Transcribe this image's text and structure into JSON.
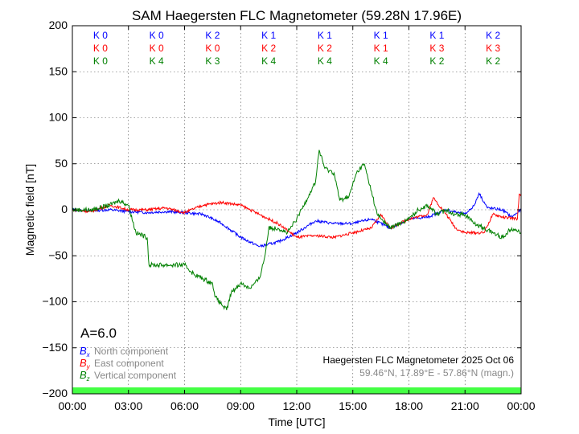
{
  "chart_data": {
    "type": "line",
    "title": "SAM Haegersten FLC Magnetometer (59.28N 17.96E)",
    "xlabel": "Time [UTC]",
    "ylabel": "Magnetic field [nT]",
    "xlim": [
      0,
      24
    ],
    "ylim": [
      -200,
      200
    ],
    "xticks": [
      0,
      3,
      6,
      9,
      12,
      15,
      18,
      21,
      24
    ],
    "xtick_labels": [
      "00:00",
      "03:00",
      "06:00",
      "09:00",
      "12:00",
      "15:00",
      "18:00",
      "21:00",
      "00:00"
    ],
    "yticks": [
      200,
      150,
      100,
      50,
      0,
      -50,
      -100,
      -150,
      -200
    ],
    "ytick_labels": [
      "200",
      "150",
      "100",
      "50",
      "0",
      "−50",
      "−100",
      "−150",
      "−200"
    ],
    "grid": true,
    "k_indices": {
      "bx": [
        "K 0",
        "K 0",
        "K 2",
        "K 1",
        "K 1",
        "K 1",
        "K 1",
        "K 2"
      ],
      "by": [
        "K 0",
        "K 0",
        "K 0",
        "K 2",
        "K 2",
        "K 1",
        "K 3",
        "K 3"
      ],
      "bz": [
        "K 0",
        "K 4",
        "K 3",
        "K 4",
        "K 4",
        "K 4",
        "K 2",
        "K 2"
      ]
    },
    "a_index": "A=6.0",
    "legend": [
      {
        "symbol": "Bx",
        "sub": "x",
        "name": "North component",
        "color": "#0000ff"
      },
      {
        "symbol": "By",
        "sub": "y",
        "name": "East component",
        "color": "#ff0000"
      },
      {
        "symbol": "Bz",
        "sub": "z",
        "name": "Vertical component",
        "color": "#008000"
      }
    ],
    "annotation": "Haegersten FLC Magnetometer 2025 Oct 06",
    "location": "59.46°N, 17.89°E - 57.86°N (magn.)",
    "status_bar_color": "#44ff44",
    "series": [
      {
        "name": "Bx",
        "color": "#0000ff",
        "points": [
          [
            0,
            0
          ],
          [
            1,
            -1
          ],
          [
            2,
            0
          ],
          [
            3,
            -2
          ],
          [
            4,
            -3
          ],
          [
            5,
            -2
          ],
          [
            6,
            -3
          ],
          [
            7,
            -5
          ],
          [
            8,
            -15
          ],
          [
            9,
            -30
          ],
          [
            10,
            -40
          ],
          [
            11,
            -35
          ],
          [
            12,
            -25
          ],
          [
            13,
            -12
          ],
          [
            14,
            -15
          ],
          [
            15,
            -15
          ],
          [
            16,
            -10
          ],
          [
            17,
            -20
          ],
          [
            18,
            -10
          ],
          [
            19,
            -8
          ],
          [
            20,
            0
          ],
          [
            21,
            -5
          ],
          [
            21.5,
            5
          ],
          [
            21.75,
            18
          ],
          [
            22.2,
            2
          ],
          [
            23,
            0
          ],
          [
            23.5,
            -8
          ],
          [
            24,
            0
          ]
        ]
      },
      {
        "name": "By",
        "color": "#ff0000",
        "points": [
          [
            0,
            0
          ],
          [
            1,
            -2
          ],
          [
            2,
            5
          ],
          [
            3,
            0
          ],
          [
            4,
            0
          ],
          [
            5,
            2
          ],
          [
            6,
            -3
          ],
          [
            7,
            5
          ],
          [
            8,
            8
          ],
          [
            9,
            5
          ],
          [
            9.5,
            0
          ],
          [
            10,
            -5
          ],
          [
            11,
            -15
          ],
          [
            12,
            -30
          ],
          [
            13,
            -28
          ],
          [
            14,
            -30
          ],
          [
            15,
            -25
          ],
          [
            16,
            -20
          ],
          [
            16.5,
            -5
          ],
          [
            17,
            -20
          ],
          [
            18,
            -10
          ],
          [
            19,
            -5
          ],
          [
            19.3,
            13
          ],
          [
            20,
            -5
          ],
          [
            20.5,
            -20
          ],
          [
            21,
            -25
          ],
          [
            22,
            -25
          ],
          [
            22.5,
            -5
          ],
          [
            23,
            -8
          ],
          [
            23.8,
            -10
          ],
          [
            23.9,
            17
          ],
          [
            24,
            17
          ]
        ]
      },
      {
        "name": "Bz",
        "color": "#008000",
        "points": [
          [
            0,
            0
          ],
          [
            1,
            0
          ],
          [
            2,
            5
          ],
          [
            2.5,
            10
          ],
          [
            3,
            5
          ],
          [
            3.4,
            -25
          ],
          [
            4,
            -30
          ],
          [
            4.1,
            -60
          ],
          [
            5,
            -60
          ],
          [
            6,
            -60
          ],
          [
            6.5,
            -70
          ],
          [
            7,
            -75
          ],
          [
            7.5,
            -80
          ],
          [
            7.65,
            -95
          ],
          [
            8.25,
            -109
          ],
          [
            8.5,
            -90
          ],
          [
            9,
            -80
          ],
          [
            9.5,
            -85
          ],
          [
            10,
            -75
          ],
          [
            10.3,
            -50
          ],
          [
            10.5,
            -20
          ],
          [
            11,
            -20
          ],
          [
            11.5,
            -25
          ],
          [
            12,
            -10
          ],
          [
            12.5,
            10
          ],
          [
            13,
            30
          ],
          [
            13.2,
            65
          ],
          [
            13.5,
            45
          ],
          [
            14,
            40
          ],
          [
            14.3,
            10
          ],
          [
            14.8,
            15
          ],
          [
            15.2,
            40
          ],
          [
            15.6,
            50
          ],
          [
            16,
            20
          ],
          [
            16.3,
            -5
          ],
          [
            17,
            -20
          ],
          [
            18,
            -10
          ],
          [
            18.5,
            0
          ],
          [
            19,
            5
          ],
          [
            19.5,
            -5
          ],
          [
            20,
            0
          ],
          [
            20.5,
            -5
          ],
          [
            21,
            -5
          ],
          [
            21.5,
            -15
          ],
          [
            22,
            -20
          ],
          [
            22.5,
            -25
          ],
          [
            23,
            -30
          ],
          [
            23.5,
            -20
          ],
          [
            24,
            -25
          ]
        ]
      }
    ]
  }
}
